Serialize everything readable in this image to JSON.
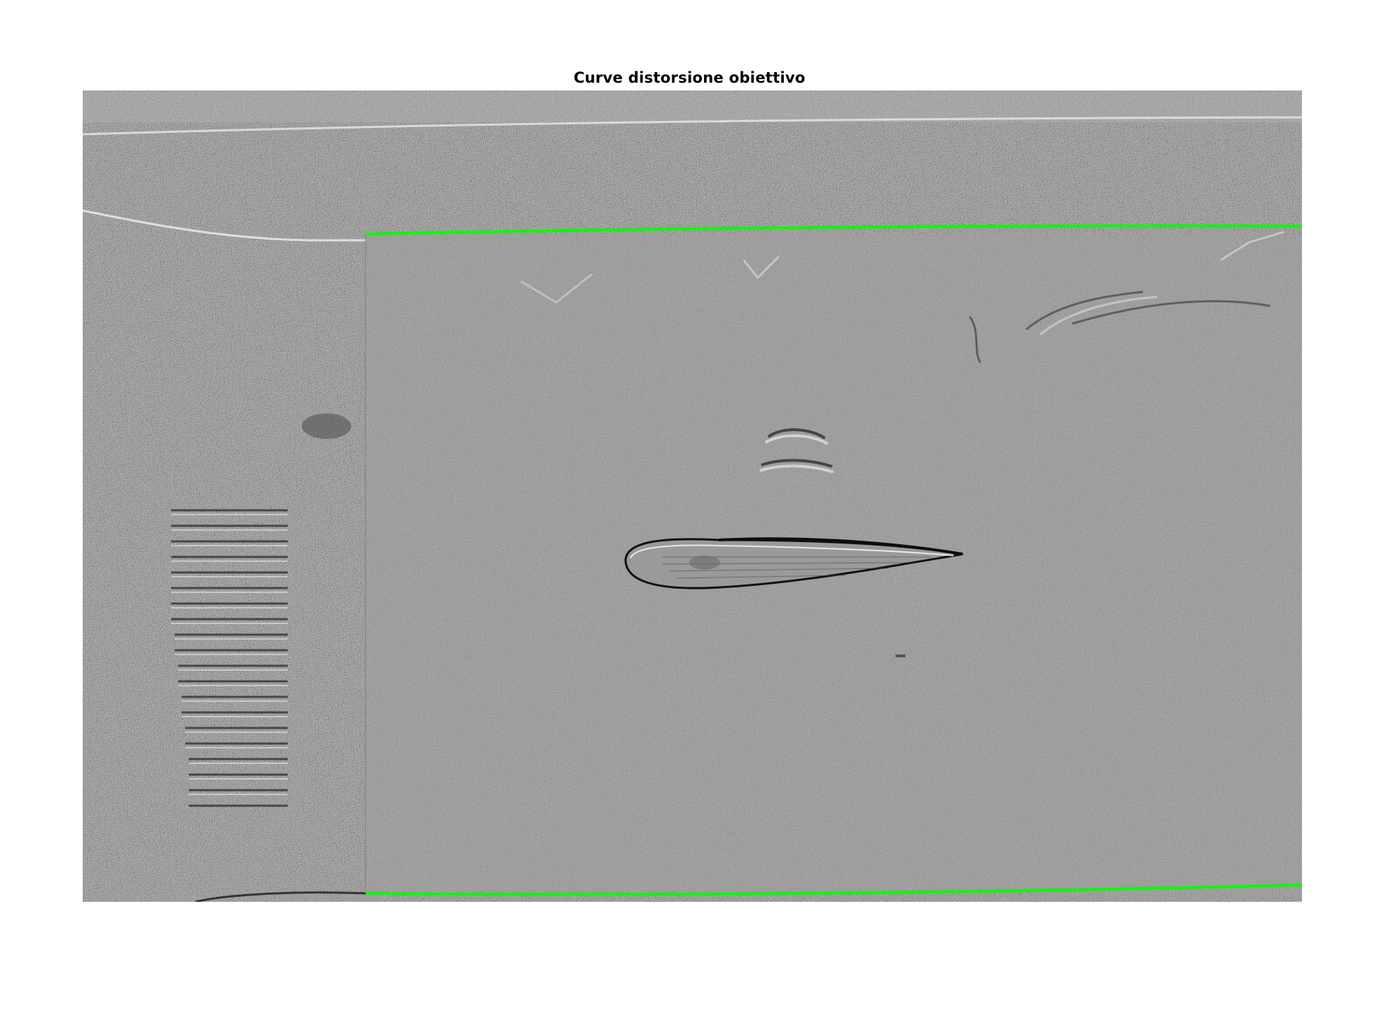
{
  "figure": {
    "title": "Curve distorsione obiettivo"
  },
  "image": {
    "description_icon": "schlieren-airfoil-image-icon",
    "background_color": "#808080",
    "curve_color": "#00ff00",
    "frame_count_visible": 1
  }
}
